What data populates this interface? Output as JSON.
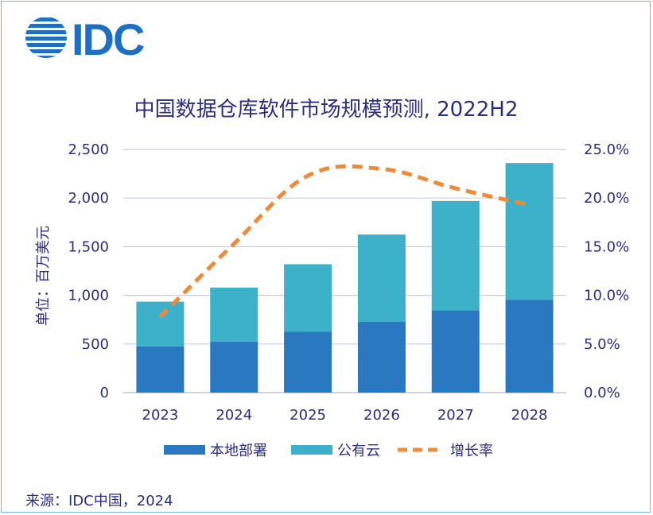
{
  "brand": {
    "logo_text": "IDC",
    "logo_color": "#1f6fc0"
  },
  "source": "来源：IDC中国，2024",
  "colors": {
    "onprem": "#2a78c0",
    "cloud": "#3db1c9",
    "growth": "#ee8b3a",
    "text": "#2b2f7a",
    "grid": "#c9cbe6",
    "axis": "#b8b8d8"
  },
  "chart_data": {
    "type": "bar",
    "title": "中国数据仓库软件市场规模预测, 2022H2",
    "ylabel": "单位：百万美元",
    "categories": [
      "2023",
      "2024",
      "2025",
      "2026",
      "2027",
      "2028"
    ],
    "stacked": true,
    "series": [
      {
        "name": "本地部署",
        "type": "bar",
        "axis": "left",
        "values": [
          475,
          525,
          625,
          730,
          845,
          955
        ]
      },
      {
        "name": "公有云",
        "type": "bar",
        "axis": "left",
        "values": [
          460,
          555,
          695,
          895,
          1125,
          1405
        ]
      },
      {
        "name": "增长率",
        "type": "line",
        "style": "dashed",
        "axis": "right",
        "values": [
          7.8,
          15.3,
          22.3,
          23.0,
          21.0,
          19.3
        ]
      }
    ],
    "ylim": [
      0,
      2500
    ],
    "yticks": [
      "0",
      "500",
      "1,000",
      "1,500",
      "2,000",
      "2,500"
    ],
    "y2lim": [
      0,
      25
    ],
    "y2ticks": [
      "0.0%",
      "5.0%",
      "10.0%",
      "15.0%",
      "20.0%",
      "25.0%"
    ],
    "grid": true,
    "legend": "bottom"
  }
}
